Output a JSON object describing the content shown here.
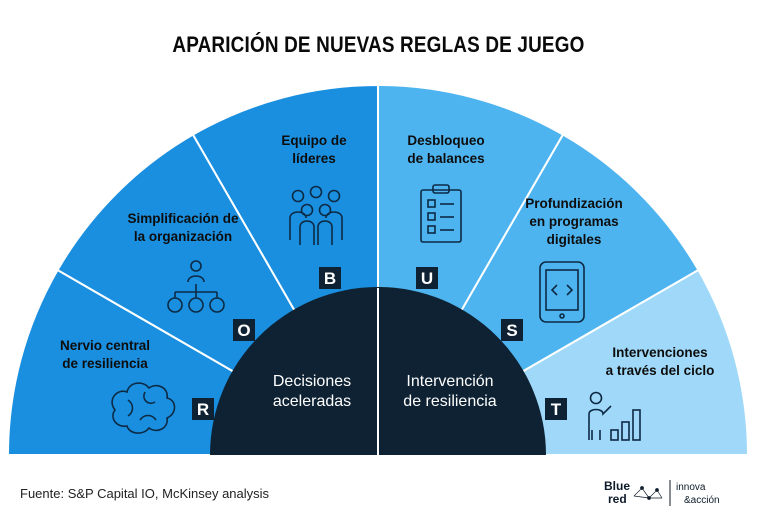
{
  "title": "APARICIÓN DE NUEVAS REGLAS DE JUEGO",
  "segments": [
    {
      "lines": [
        "Nervio central",
        "de resiliencia"
      ],
      "letter": "R",
      "icon": "brain-icon",
      "color": "#1a8fe0"
    },
    {
      "lines": [
        "Simplificación de",
        "la organización"
      ],
      "letter": "O",
      "icon": "org-chart-icon",
      "color": "#1a8fe0"
    },
    {
      "lines": [
        "Equipo de",
        "líderes"
      ],
      "letter": "B",
      "icon": "team-icon",
      "color": "#1a8fe0"
    },
    {
      "lines": [
        "Desbloqueo",
        "de balances"
      ],
      "letter": "U",
      "icon": "checklist-icon",
      "color": "#4db4f0"
    },
    {
      "lines": [
        "Profundización",
        "en programas",
        "digitales"
      ],
      "letter": "S",
      "icon": "tablet-code-icon",
      "color": "#4db4f0"
    },
    {
      "lines": [
        "Intervenciones",
        "a través del ciclo"
      ],
      "letter": "T",
      "icon": "presenter-chart-icon",
      "color": "#9fd8f8"
    }
  ],
  "center": {
    "left": [
      "Decisiones",
      "aceleradas"
    ],
    "right": [
      "Intervención",
      "de resiliencia"
    ],
    "color": "#0e2233"
  },
  "source": "Fuente: S&P Capital IO, McKinsey analysis",
  "logo": {
    "line1": "Blue",
    "line2": "red",
    "line3": "innova",
    "line4": "&acción"
  }
}
